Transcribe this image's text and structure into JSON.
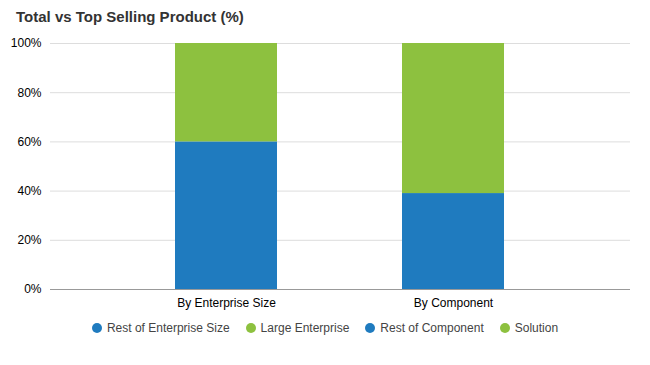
{
  "chart_data": {
    "type": "bar",
    "title": "Total vs Top Selling Product (%)",
    "categories": [
      "By Enterprise Size",
      "By Component"
    ],
    "series": [
      {
        "name": "Rest of Enterprise Size",
        "color": "#1f7bbf",
        "values": [
          60,
          null
        ]
      },
      {
        "name": "Large Enterprise",
        "color": "#8dc13f",
        "values": [
          40,
          null
        ]
      },
      {
        "name": "Rest of Component",
        "color": "#1f7bbf",
        "values": [
          null,
          39
        ]
      },
      {
        "name": "Solution",
        "color": "#8dc13f",
        "values": [
          null,
          61
        ]
      }
    ],
    "stacked": true,
    "ylim": [
      0,
      100
    ],
    "yticks": [
      {
        "value": 0,
        "label": "0%"
      },
      {
        "value": 20,
        "label": "20%"
      },
      {
        "value": 40,
        "label": "40%"
      },
      {
        "value": 60,
        "label": "60%"
      },
      {
        "value": 80,
        "label": "80%"
      },
      {
        "value": 100,
        "label": "100%"
      }
    ],
    "grid": true,
    "legend": "bottom"
  }
}
